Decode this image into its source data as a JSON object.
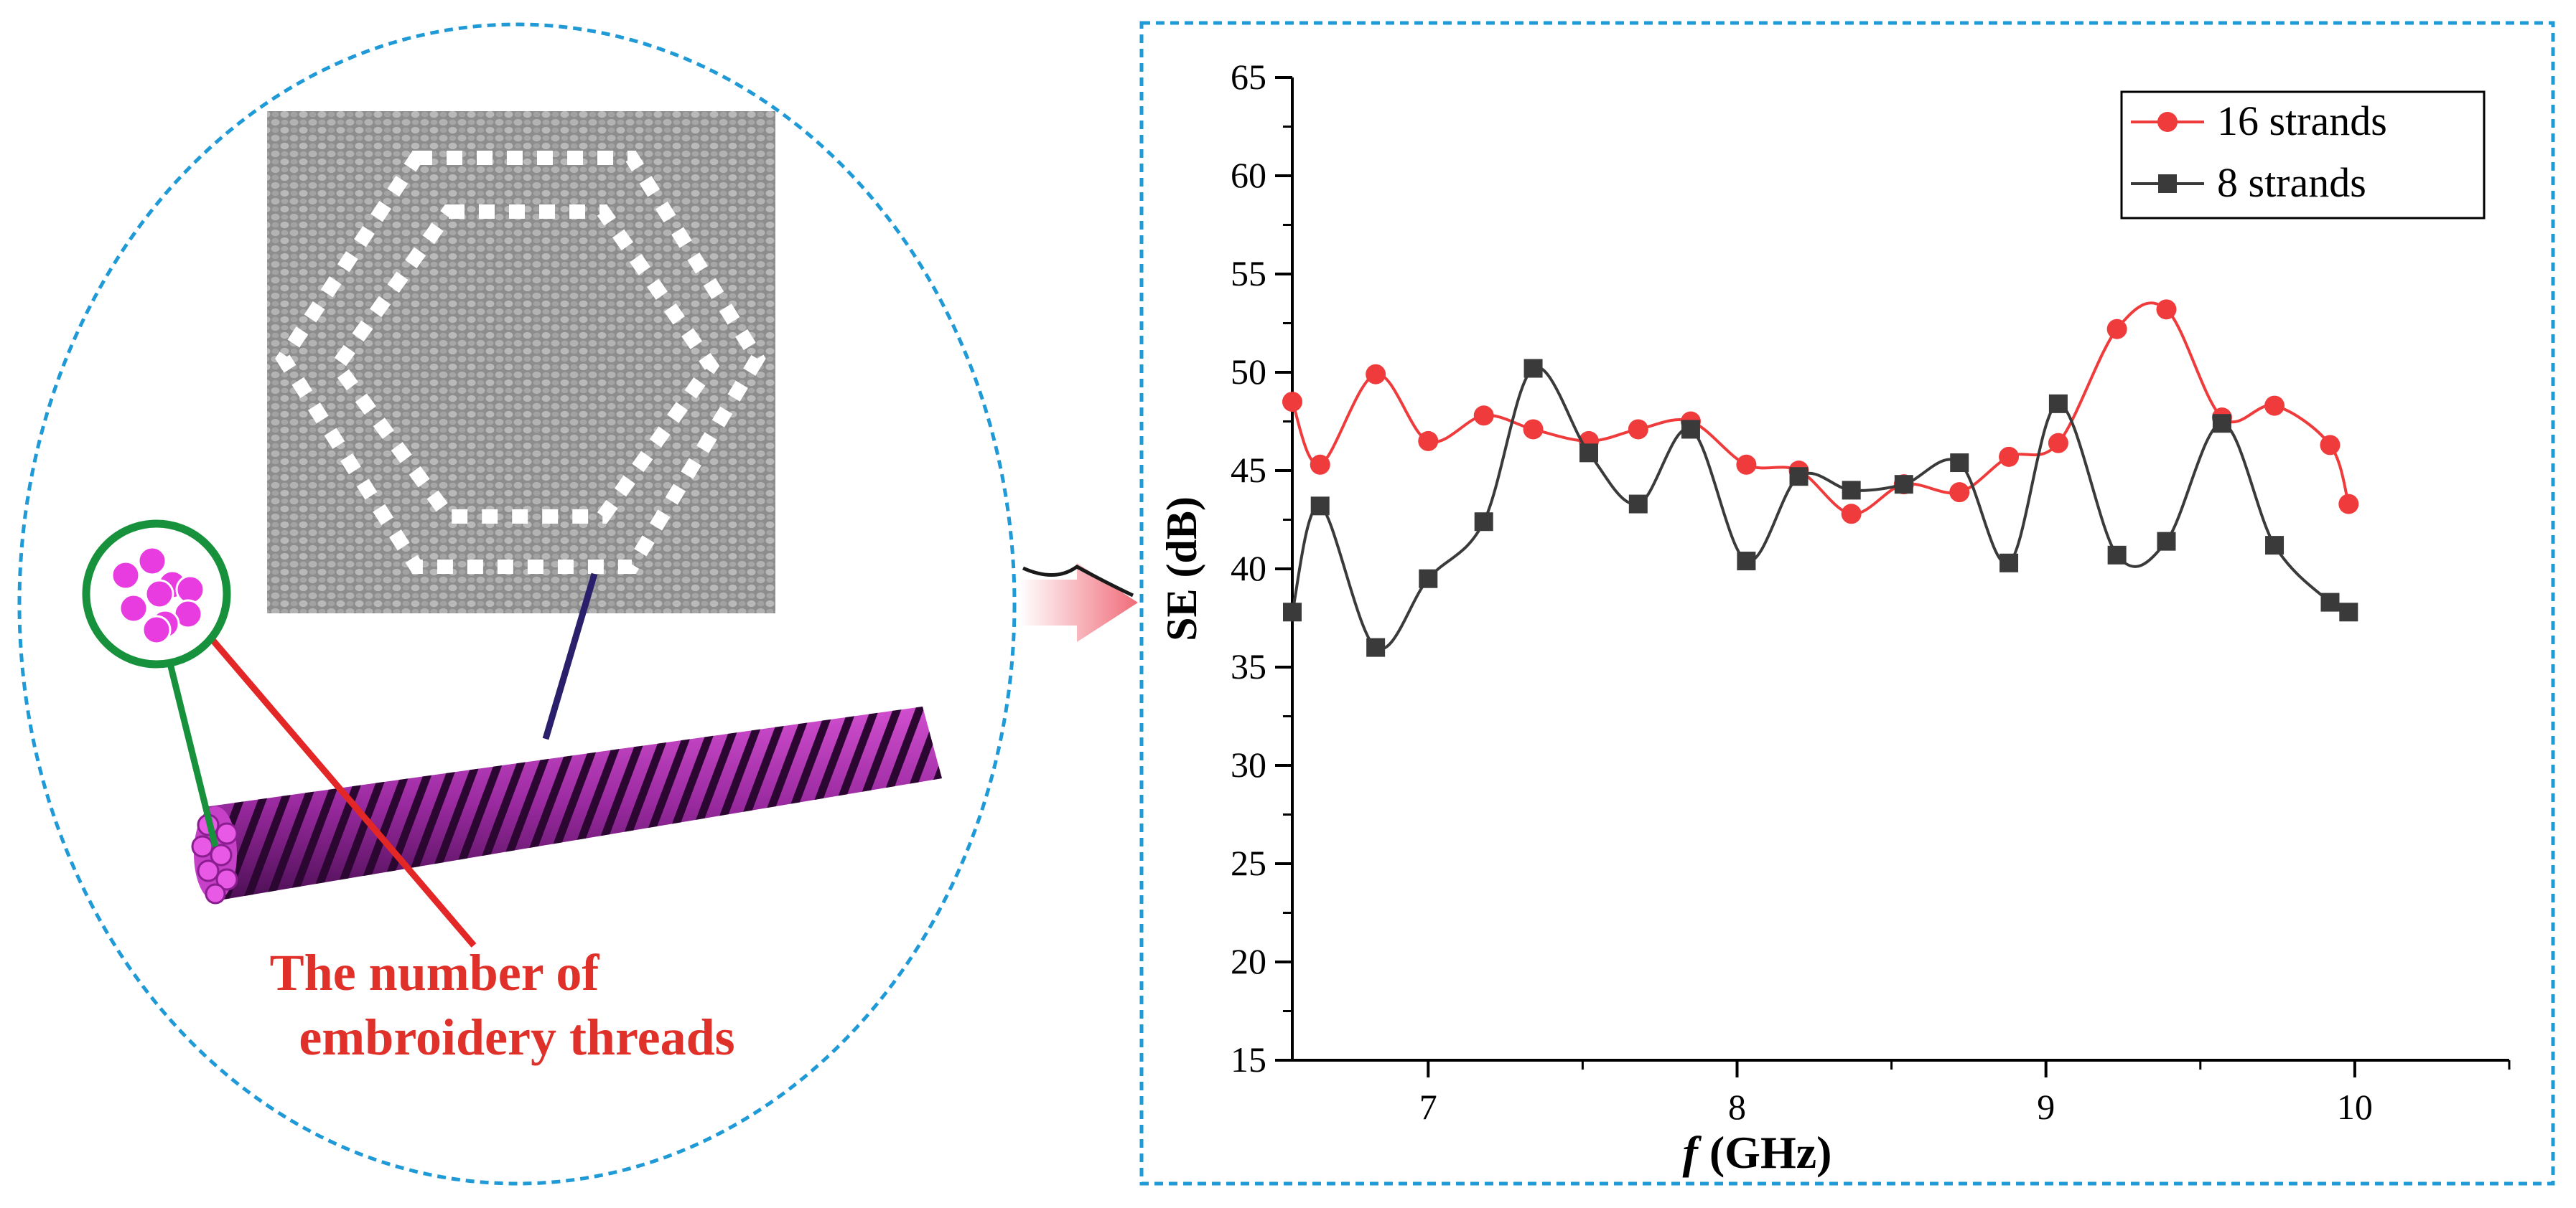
{
  "left_panel": {
    "caption_line1": "The number of",
    "caption_line2": "embroidery threads"
  },
  "colors": {
    "frame": "#1f9ad6",
    "red": "#ef3b3b",
    "dark": "#3a3a3a",
    "caption": "#e0302a",
    "magenta": "#e83ce0"
  },
  "chart_data": {
    "type": "line",
    "title": "",
    "xlabel_italic": "f",
    "xlabel_rest": " (GHz)",
    "ylabel": "SE (dB)",
    "xlim": [
      6.56,
      10.5
    ],
    "ylim": [
      15,
      65
    ],
    "xticks": [
      7,
      8,
      9,
      10
    ],
    "yticks": [
      15,
      20,
      25,
      30,
      35,
      40,
      45,
      50,
      55,
      60,
      65
    ],
    "legend_position": "top-right",
    "series": [
      {
        "name": "16 strands",
        "color": "#ef3b3b",
        "marker": "circle",
        "x": [
          6.56,
          6.65,
          6.83,
          7.0,
          7.18,
          7.34,
          7.52,
          7.68,
          7.85,
          8.03,
          8.2,
          8.37,
          8.54,
          8.72,
          8.88,
          9.04,
          9.23,
          9.39,
          9.57,
          9.74,
          9.92,
          9.98
        ],
        "values": [
          48.5,
          45.3,
          49.9,
          46.5,
          47.8,
          47.1,
          46.5,
          47.1,
          47.5,
          45.3,
          45.0,
          42.8,
          44.3,
          43.9,
          45.7,
          46.4,
          52.2,
          53.2,
          47.7,
          48.3,
          46.3,
          43.3
        ]
      },
      {
        "name": "8 strands",
        "color": "#3a3a3a",
        "marker": "square",
        "x": [
          6.56,
          6.65,
          6.83,
          7.0,
          7.18,
          7.34,
          7.52,
          7.68,
          7.85,
          8.03,
          8.2,
          8.37,
          8.54,
          8.72,
          8.88,
          9.04,
          9.23,
          9.39,
          9.57,
          9.74,
          9.92,
          9.98
        ],
        "values": [
          37.8,
          43.2,
          36.0,
          39.5,
          42.4,
          50.2,
          45.9,
          43.3,
          47.1,
          40.4,
          44.7,
          44.0,
          44.3,
          45.4,
          40.3,
          48.4,
          40.7,
          41.4,
          47.4,
          41.2,
          38.3,
          37.8
        ]
      }
    ]
  }
}
